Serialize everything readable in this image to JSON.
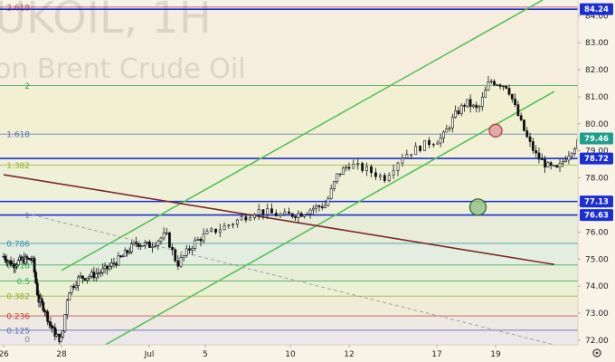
{
  "chart_data": {
    "type": "candlestick",
    "watermark": {
      "symbol": "UKOIL, 1H",
      "name": "on Brent Crude Oil"
    },
    "y_axis": {
      "ticks": [
        72.0,
        73.0,
        74.0,
        75.0,
        76.0,
        77.0,
        78.0,
        79.0,
        80.0,
        81.0,
        82.0,
        83.0,
        84.0
      ],
      "ylim": [
        71.83,
        84.58
      ]
    },
    "x_axis": {
      "ticks": [
        {
          "label": "26",
          "t": 0
        },
        {
          "label": "28",
          "t": 2
        },
        {
          "label": "Jul",
          "t": 4
        },
        {
          "label": "5",
          "t": 5
        },
        {
          "label": "10",
          "t": 6
        },
        {
          "label": "12",
          "t": 7
        },
        {
          "label": "17",
          "t": 8
        },
        {
          "label": "19",
          "t": 9
        }
      ]
    },
    "price_tags": [
      {
        "value": 84.24,
        "label": "84.24",
        "color": "#1a2ed6"
      },
      {
        "value": 79.46,
        "label": "79.46",
        "color": "#1d9e8e"
      },
      {
        "value": 78.72,
        "label": "78.72",
        "color": "#1a2ed6"
      },
      {
        "value": 77.13,
        "label": "77.13",
        "color": "#1a2ed6"
      },
      {
        "value": 76.63,
        "label": "76.63",
        "color": "#1a2ed6"
      }
    ],
    "fib_levels": [
      {
        "ratio": "2.618",
        "value": 84.32,
        "color": "#c23b3b"
      },
      {
        "ratio": "2",
        "value": 81.42,
        "color": "#2ea34a"
      },
      {
        "ratio": "1.618",
        "value": 79.62,
        "color": "#5b6fb0"
      },
      {
        "ratio": "1.382",
        "value": 78.48,
        "color": "#8fae2a"
      },
      {
        "ratio": "1",
        "value": 76.63,
        "color": "#8a8a8a"
      },
      {
        "ratio": "0.786",
        "value": 75.58,
        "color": "#2a8fb0"
      },
      {
        "ratio": "0.618",
        "value": 74.78,
        "color": "#2ea34a"
      },
      {
        "ratio": "0.5",
        "value": 74.19,
        "color": "#2ea34a"
      },
      {
        "ratio": "0.382",
        "value": 73.63,
        "color": "#8fae2a"
      },
      {
        "ratio": "0.236",
        "value": 72.9,
        "color": "#c23b3b"
      },
      {
        "ratio": "0.125",
        "value": 72.37,
        "color": "#5b6fb0"
      },
      {
        "ratio": "0",
        "value": 71.83,
        "color": "#8a8a8a"
      }
    ],
    "horizontal_lines": [
      84.24,
      78.72,
      77.13,
      76.63
    ],
    "trend_lines": [
      {
        "color": "#5cbf5c",
        "points": [
          [
            2.0,
            74.58
          ],
          [
            9.8,
            84.58
          ]
        ]
      },
      {
        "color": "#5cbf5c",
        "points": [
          [
            3.0,
            71.83
          ],
          [
            10.0,
            81.2
          ]
        ]
      },
      {
        "color": "#7a2a2a",
        "points": [
          [
            0.0,
            78.12
          ],
          [
            10.0,
            74.8
          ]
        ]
      },
      {
        "color": "#9a9a9a",
        "dashed": true,
        "points": [
          [
            1.0,
            76.63
          ],
          [
            10.0,
            71.83
          ]
        ]
      }
    ],
    "markers": [
      {
        "t": 9.0,
        "value": 79.75,
        "fill": "#e0a4a4",
        "stroke": "#a33",
        "r": 7
      },
      {
        "t": 8.7,
        "value": 76.92,
        "fill": "#9cc48f",
        "stroke": "#2a5a2a",
        "r": 9
      }
    ],
    "ohlc_close_path": [
      [
        0.0,
        75.1
      ],
      [
        0.3,
        74.8
      ],
      [
        0.6,
        74.95
      ],
      [
        1.0,
        75.0
      ],
      [
        1.2,
        73.5
      ],
      [
        1.4,
        73.2
      ],
      [
        1.6,
        72.6
      ],
      [
        1.8,
        72.2
      ],
      [
        2.0,
        72.0
      ],
      [
        2.15,
        73.8
      ],
      [
        2.4,
        74.3
      ],
      [
        2.7,
        74.4
      ],
      [
        3.0,
        74.6
      ],
      [
        3.4,
        75.1
      ],
      [
        3.7,
        75.6
      ],
      [
        4.0,
        75.5
      ],
      [
        4.3,
        75.9
      ],
      [
        4.5,
        74.8
      ],
      [
        4.8,
        75.6
      ],
      [
        5.0,
        75.9
      ],
      [
        5.3,
        76.3
      ],
      [
        5.6,
        76.8
      ],
      [
        5.9,
        76.6
      ],
      [
        6.2,
        76.7
      ],
      [
        6.4,
        76.9
      ],
      [
        6.6,
        77.0
      ],
      [
        6.8,
        78.1
      ],
      [
        7.0,
        78.5
      ],
      [
        7.2,
        78.3
      ],
      [
        7.4,
        78.0
      ],
      [
        7.6,
        78.8
      ],
      [
        7.9,
        79.3
      ],
      [
        8.1,
        79.5
      ],
      [
        8.3,
        80.3
      ],
      [
        8.5,
        80.8
      ],
      [
        8.7,
        80.5
      ],
      [
        8.9,
        81.6
      ],
      [
        9.05,
        81.5
      ],
      [
        9.2,
        81.4
      ],
      [
        9.4,
        80.2
      ],
      [
        9.55,
        79.4
      ],
      [
        9.7,
        78.8
      ],
      [
        9.9,
        78.4
      ],
      [
        10.05,
        78.3
      ],
      [
        10.2,
        78.8
      ],
      [
        10.35,
        79.2
      ],
      [
        10.5,
        79.5
      ],
      [
        10.6,
        79.46
      ]
    ]
  }
}
